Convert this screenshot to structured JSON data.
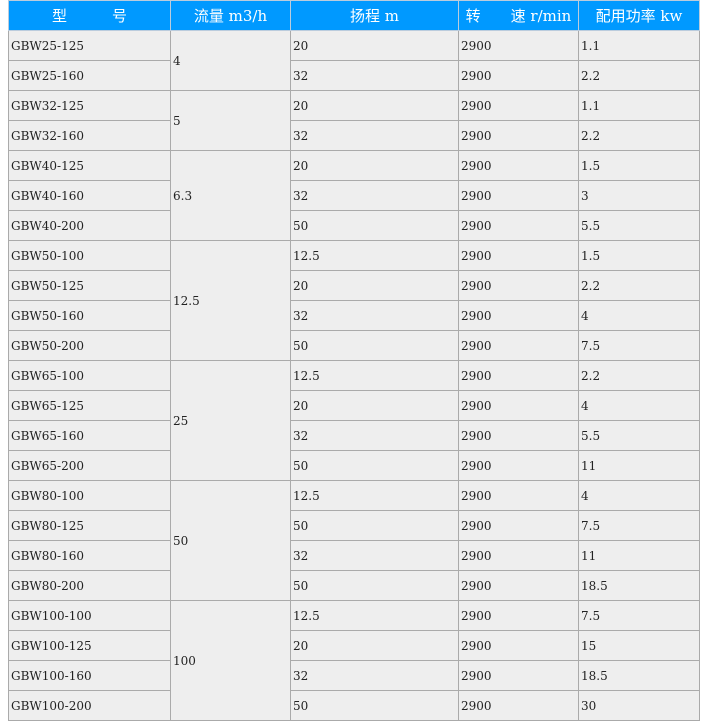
{
  "header": [
    "型　　　号",
    "流量 m3/h",
    "扬程 m",
    "转　　速 r/min",
    "配用功率 kw"
  ],
  "colors": {
    "header_bg": "#0099ff",
    "cell_bg": "#eeeeee",
    "border": "#aaaaaa"
  },
  "groups": [
    {
      "flow": "4",
      "rows": [
        [
          "GBW25-125",
          "20",
          "2900",
          "1.1"
        ],
        [
          "GBW25-160",
          "32",
          "2900",
          "2.2"
        ]
      ]
    },
    {
      "flow": "5",
      "rows": [
        [
          "GBW32-125",
          "20",
          "2900",
          "1.1"
        ],
        [
          "GBW32-160",
          "32",
          "2900",
          "2.2"
        ]
      ]
    },
    {
      "flow": "6.3",
      "rows": [
        [
          "GBW40-125",
          "20",
          "2900",
          "1.5"
        ],
        [
          "GBW40-160",
          "32",
          "2900",
          "3"
        ],
        [
          "GBW40-200",
          "50",
          "2900",
          "5.5"
        ]
      ]
    },
    {
      "flow": "12.5",
      "rows": [
        [
          "GBW50-100",
          "12.5",
          "2900",
          "1.5"
        ],
        [
          "GBW50-125",
          "20",
          "2900",
          "2.2"
        ],
        [
          "GBW50-160",
          "32",
          "2900",
          "4"
        ],
        [
          "GBW50-200",
          "50",
          "2900",
          "7.5"
        ]
      ]
    },
    {
      "flow": "25",
      "rows": [
        [
          "GBW65-100",
          "12.5",
          "2900",
          "2.2"
        ],
        [
          "GBW65-125",
          "20",
          "2900",
          "4"
        ],
        [
          "GBW65-160",
          "32",
          "2900",
          "5.5"
        ],
        [
          "GBW65-200",
          "50",
          "2900",
          "11"
        ]
      ]
    },
    {
      "flow": "50",
      "rows": [
        [
          "GBW80-100",
          "12.5",
          "2900",
          "4"
        ],
        [
          "GBW80-125",
          "50",
          "2900",
          "7.5"
        ],
        [
          "GBW80-160",
          "32",
          "2900",
          "11"
        ],
        [
          "GBW80-200",
          "50",
          "2900",
          "18.5"
        ]
      ]
    },
    {
      "flow": "100",
      "rows": [
        [
          "GBW100-100",
          "12.5",
          "2900",
          "7.5"
        ],
        [
          "GBW100-125",
          "20",
          "2900",
          "15"
        ],
        [
          "GBW100-160",
          "32",
          "2900",
          "18.5"
        ],
        [
          "GBW100-200",
          "50",
          "2900",
          "30"
        ]
      ]
    }
  ]
}
